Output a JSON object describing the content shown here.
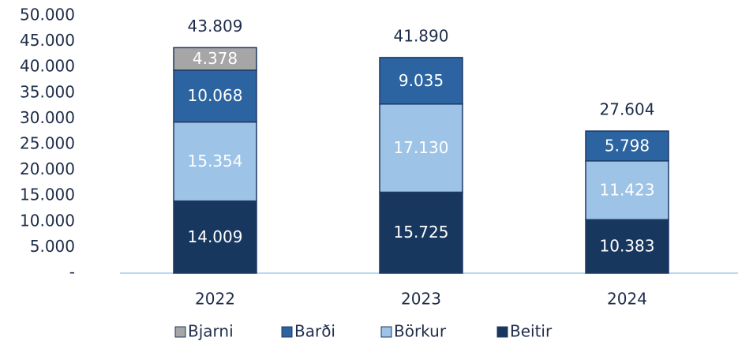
{
  "chart_data": {
    "type": "stacked_bar",
    "categories": [
      "2022",
      "2023",
      "2024"
    ],
    "series": [
      {
        "name": "Beitir",
        "color": "#17375e",
        "values": [
          14009,
          15725,
          10383
        ],
        "value_labels": [
          "14.009",
          "15.725",
          "10.383"
        ]
      },
      {
        "name": "Börkur",
        "color": "#9dc3e6",
        "values": [
          15354,
          17130,
          11423
        ],
        "value_labels": [
          "15.354",
          "17.130",
          "11.423"
        ]
      },
      {
        "name": "Barði",
        "color": "#2b64a0",
        "values": [
          10068,
          9035,
          5798
        ],
        "value_labels": [
          "10.068",
          "9.035",
          "5.798"
        ]
      },
      {
        "name": "Bjarni",
        "color": "#a6a6a6",
        "values": [
          4378,
          null,
          null
        ],
        "value_labels": [
          "4.378",
          null,
          null
        ]
      }
    ],
    "totals": {
      "values": [
        43809,
        41890,
        27604
      ],
      "value_labels": [
        "43.809",
        "41.890",
        "27.604"
      ]
    },
    "ylim": [
      0,
      50000
    ],
    "yticks": [
      {
        "value": 0,
        "label": "-"
      },
      {
        "value": 5000,
        "label": "5.000"
      },
      {
        "value": 10000,
        "label": "10.000"
      },
      {
        "value": 15000,
        "label": "15.000"
      },
      {
        "value": 20000,
        "label": "20.000"
      },
      {
        "value": 25000,
        "label": "25.000"
      },
      {
        "value": 30000,
        "label": "30.000"
      },
      {
        "value": 35000,
        "label": "35.000"
      },
      {
        "value": 40000,
        "label": "40.000"
      },
      {
        "value": 45000,
        "label": "45.000"
      },
      {
        "value": 50000,
        "label": "50.000"
      }
    ],
    "grid": false,
    "legend": "bottom"
  }
}
